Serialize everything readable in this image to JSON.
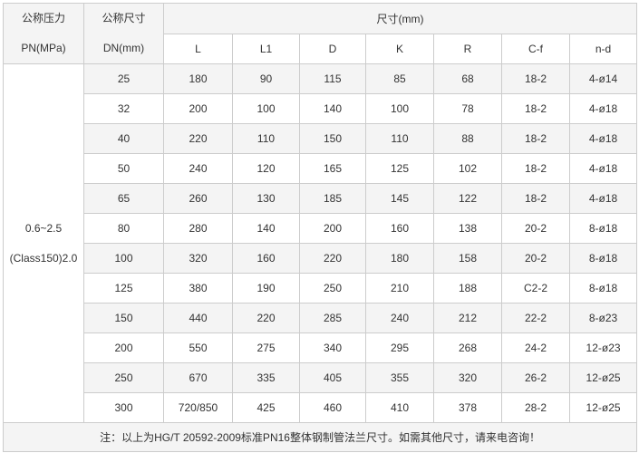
{
  "header": {
    "pn": [
      "公称压力",
      "PN(MPa)"
    ],
    "dn": [
      "公称尺寸",
      "DN(mm)"
    ],
    "size": "尺寸(mm)",
    "cols": [
      "L",
      "L1",
      "D",
      "K",
      "R",
      "C-f",
      "n-d"
    ]
  },
  "pressure": [
    "0.6~2.5",
    "(Class150)2.0"
  ],
  "rows": [
    [
      "25",
      "180",
      "90",
      "115",
      "85",
      "68",
      "18-2",
      "4-ø14"
    ],
    [
      "32",
      "200",
      "100",
      "140",
      "100",
      "78",
      "18-2",
      "4-ø18"
    ],
    [
      "40",
      "220",
      "110",
      "150",
      "110",
      "88",
      "18-2",
      "4-ø18"
    ],
    [
      "50",
      "240",
      "120",
      "165",
      "125",
      "102",
      "18-2",
      "4-ø18"
    ],
    [
      "65",
      "260",
      "130",
      "185",
      "145",
      "122",
      "18-2",
      "4-ø18"
    ],
    [
      "80",
      "280",
      "140",
      "200",
      "160",
      "138",
      "20-2",
      "8-ø18"
    ],
    [
      "100",
      "320",
      "160",
      "220",
      "180",
      "158",
      "20-2",
      "8-ø18"
    ],
    [
      "125",
      "380",
      "190",
      "250",
      "210",
      "188",
      "C2-2",
      "8-ø18"
    ],
    [
      "150",
      "440",
      "220",
      "285",
      "240",
      "212",
      "22-2",
      "8-ø23"
    ],
    [
      "200",
      "550",
      "275",
      "340",
      "295",
      "268",
      "24-2",
      "12-ø23"
    ],
    [
      "250",
      "670",
      "335",
      "405",
      "355",
      "320",
      "26-2",
      "12-ø25"
    ],
    [
      "300",
      "720/850",
      "425",
      "460",
      "410",
      "378",
      "28-2",
      "12-ø25"
    ]
  ],
  "note": "注：以上为HG/T 20592-2009标准PN16整体钢制管法兰尺寸。如需其他尺寸，请来电咨询！"
}
